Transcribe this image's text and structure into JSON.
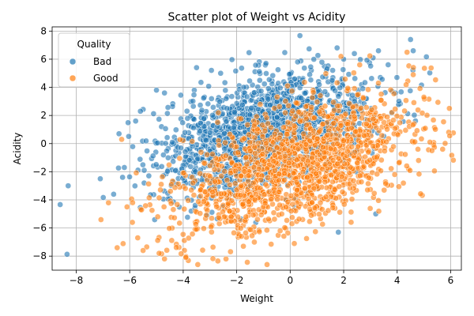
{
  "chart_data": {
    "type": "scatter",
    "title": "Scatter plot of Weight vs Acidity",
    "xlabel": "Weight",
    "ylabel": "Acidity",
    "xlim": [
      -8.9,
      6.4
    ],
    "ylim": [
      -9.0,
      8.3
    ],
    "xticks": [
      -8,
      -6,
      -4,
      -2,
      0,
      2,
      4,
      6
    ],
    "yticks": [
      -8,
      -6,
      -4,
      -2,
      0,
      2,
      4,
      6,
      8
    ],
    "grid": true,
    "legend": {
      "title": "Quality",
      "placement": "upper-left",
      "entries": [
        "Bad",
        "Good"
      ]
    },
    "series": [
      {
        "name": "Bad",
        "color": "#1f77b4",
        "cloud": {
          "count": 1800,
          "x_mean": -0.9,
          "x_sd": 1.9,
          "y_mean": 0.8,
          "y_sd": 1.9,
          "slope": 0.45
        },
        "x": [
          -8.3,
          -7.1,
          -6.6,
          -6.4,
          -6.2,
          -5.6,
          -5.0,
          -4.7,
          4.5,
          4.6,
          3.3,
          3.2,
          2.0,
          2.4,
          -2.6,
          -3.5,
          1.8,
          3.1
        ],
        "y": [
          -3.0,
          -2.5,
          -3.6,
          0.7,
          -1.7,
          2.3,
          3.8,
          3.6,
          7.4,
          6.6,
          6.6,
          -5.0,
          6.0,
          6.4,
          5.0,
          5.4,
          -6.3,
          6.1
        ]
      },
      {
        "name": "Good",
        "color": "#ff7f0e",
        "cloud": {
          "count": 1500,
          "x_mean": 0.2,
          "x_sd": 2.2,
          "y_mean": -1.6,
          "y_sd": 2.1,
          "slope": 0.55
        },
        "x": [
          -6.3,
          -6.1,
          -5.9,
          -5.7,
          -5.5,
          -4.9,
          -4.7,
          -3.9,
          -2.4,
          4.6,
          5.0,
          5.3,
          5.7,
          1.9,
          2.6,
          3.3,
          4.8
        ],
        "y": [
          0.3,
          -4.5,
          -5.6,
          -6.7,
          -7.6,
          -7.8,
          -8.2,
          -8.1,
          -8.2,
          4.9,
          3.3,
          -0.5,
          -0.4,
          6.2,
          5.6,
          4.3,
          -1.2
        ]
      }
    ]
  }
}
